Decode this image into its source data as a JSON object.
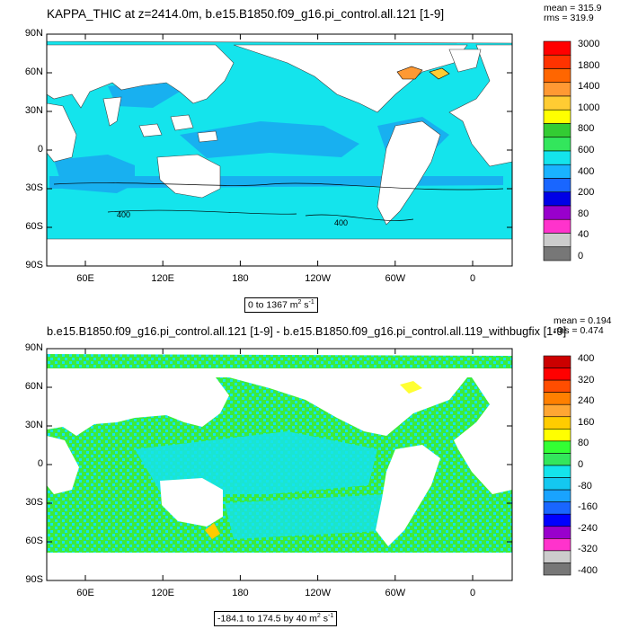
{
  "colors": {
    "land": "#ffffff",
    "ocean_main": "#14e4ec",
    "ocean_dark": "#18b0f0",
    "diff_green": "#3ceb3c",
    "diff_cyan": "#14e4ec"
  },
  "axes": {
    "lat_labels": [
      "90N",
      "60N",
      "30N",
      "0",
      "30S",
      "60S",
      "90S"
    ],
    "lon_labels": [
      "60E",
      "120E",
      "180",
      "120W",
      "60W",
      "0"
    ]
  },
  "panel1": {
    "title": "KAPPA_THIC at z=2414.0m, b.e15.B1850.f09_g16.pi_control.all.121 [1-9]",
    "mean": "mean = 315.9",
    "rms": "rms = 319.9",
    "range_pre": "0 to 1367 m",
    "range_sup": "2",
    "range_mid": " s",
    "range_sup2": "-1",
    "contour_labels": [
      "400",
      "400"
    ],
    "colorbar_labels": [
      "3000",
      "1800",
      "1400",
      "1000",
      "800",
      "600",
      "400",
      "200",
      "80",
      "40",
      "0"
    ],
    "colorbar_colors": [
      "#ff0000",
      "#ff3300",
      "#ff6600",
      "#ff9933",
      "#ffcc33",
      "#ffff00",
      "#33cc33",
      "#33e65c",
      "#14e4ec",
      "#19b3ff",
      "#1966ff",
      "#0000e6",
      "#9900cc",
      "#ff33cc",
      "#cccccc",
      "#777777"
    ]
  },
  "panel2": {
    "title": "b.e15.B1850.f09_g16.pi_control.all.121 [1-9] - b.e15.B1850.f09_g16.pi_control.all.119_withbugfix [1-9]",
    "mean": "mean = 0.194",
    "rms": "rms = 0.474",
    "range_pre": "-184.1 to 174.5 by 40 m",
    "range_sup": "2",
    "range_mid": " s",
    "range_sup2": "-1",
    "colorbar_labels": [
      "400",
      "320",
      "240",
      "160",
      "80",
      "0",
      "-80",
      "-160",
      "-240",
      "-320",
      "-400"
    ],
    "colorbar_colors": [
      "#cc0000",
      "#ff0000",
      "#ff4d00",
      "#ff8000",
      "#ffa633",
      "#ffcc00",
      "#ffff00",
      "#33ff33",
      "#33e65c",
      "#14e4ec",
      "#14c8f0",
      "#19a3ff",
      "#1966ff",
      "#0000ff",
      "#9900cc",
      "#ff33cc",
      "#cccccc",
      "#777777"
    ]
  }
}
